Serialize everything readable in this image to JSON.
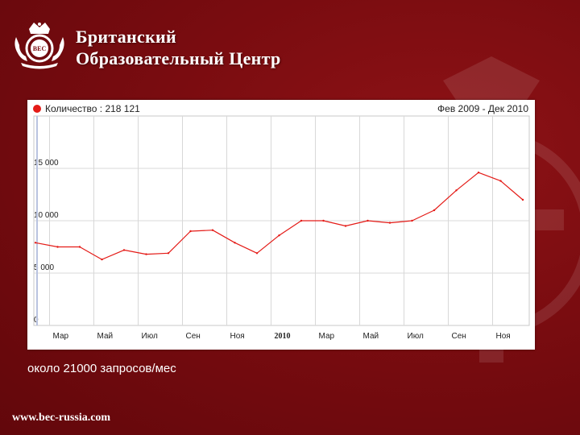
{
  "brand": {
    "line1": "Британский",
    "line2": "Образовательный Центр",
    "logo_text": "BEC",
    "logo_icon": "crown-shield-emblem-icon"
  },
  "chart": {
    "legend_label": "Количество : 218 121",
    "date_range": "Фев 2009 - Дек 2010"
  },
  "chart_data": {
    "type": "line",
    "x_tick_labels": [
      "Мар",
      "Май",
      "Июл",
      "Сен",
      "Ноя",
      "2010",
      "Мар",
      "Май",
      "Июл",
      "Сен",
      "Ноя"
    ],
    "y_tick_labels": [
      "0",
      "5 000",
      "10 000",
      "15 000"
    ],
    "ylim": [
      0,
      20000
    ],
    "series": [
      {
        "name": "Количество",
        "color": "#e41b17",
        "x": [
          "2009-02",
          "2009-03",
          "2009-04",
          "2009-05",
          "2009-06",
          "2009-07",
          "2009-08",
          "2009-09",
          "2009-10",
          "2009-11",
          "2009-12",
          "2010-01",
          "2010-02",
          "2010-03",
          "2010-04",
          "2010-05",
          "2010-06",
          "2010-07",
          "2010-08",
          "2010-09",
          "2010-10",
          "2010-11",
          "2010-12"
        ],
        "values": [
          7900,
          7500,
          7500,
          6300,
          7200,
          6800,
          6900,
          9000,
          9100,
          7900,
          6900,
          8600,
          10000,
          10000,
          9500,
          10000,
          9800,
          10000,
          11000,
          12900,
          14600,
          13800,
          12000
        ]
      }
    ],
    "grid": true,
    "xlabel": "",
    "ylabel": ""
  },
  "caption": "около 21000 запросов/мес",
  "footer": {
    "url": "www.bec-russia.com"
  }
}
